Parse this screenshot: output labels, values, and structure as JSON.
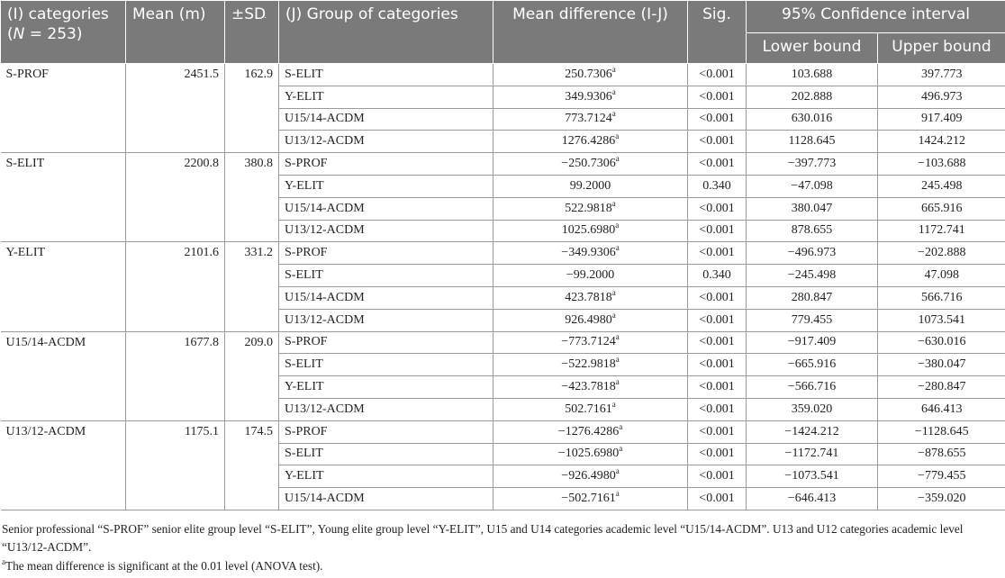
{
  "header": {
    "col_i": "(I) categories",
    "col_i_n_prefix": "(",
    "col_i_n": "N",
    "col_i_n_suffix": " = 253)",
    "col_mean": "Mean (m)",
    "col_sd": "±SD",
    "col_j": "(J) Group of categories",
    "col_diff": "Mean difference (I-J)",
    "col_sig": "Sig.",
    "col_ci": "95% Confidence interval",
    "col_lower": "Lower bound",
    "col_upper": "Upper bound"
  },
  "groups": [
    {
      "category": "S-PROF",
      "mean": "2451.5",
      "sd": "162.9",
      "rows": [
        {
          "j": "S-ELIT",
          "diff": "250.7306",
          "sup": "a",
          "sig": "<0.001",
          "lower": "103.688",
          "upper": "397.773"
        },
        {
          "j": "Y-ELIT",
          "diff": "349.9306",
          "sup": "a",
          "sig": "<0.001",
          "lower": "202.888",
          "upper": "496.973"
        },
        {
          "j": "U15/14-ACDM",
          "diff": "773.7124",
          "sup": "a",
          "sig": "<0.001",
          "lower": "630.016",
          "upper": "917.409"
        },
        {
          "j": "U13/12-ACDM",
          "diff": "1276.4286",
          "sup": "a",
          "sig": "<0.001",
          "lower": "1128.645",
          "upper": "1424.212"
        }
      ]
    },
    {
      "category": "S-ELIT",
      "mean": "2200.8",
      "sd": "380.8",
      "rows": [
        {
          "j": "S-PROF",
          "diff": "−250.7306",
          "sup": "a",
          "sig": "<0.001",
          "lower": "−397.773",
          "upper": "−103.688"
        },
        {
          "j": "Y-ELIT",
          "diff": "99.2000",
          "sup": "",
          "sig": "0.340",
          "lower": "−47.098",
          "upper": "245.498"
        },
        {
          "j": "U15/14-ACDM",
          "diff": "522.9818",
          "sup": "a",
          "sig": "<0.001",
          "lower": "380.047",
          "upper": "665.916"
        },
        {
          "j": "U13/12-ACDM",
          "diff": "1025.6980",
          "sup": "a",
          "sig": "<0.001",
          "lower": "878.655",
          "upper": "1172.741"
        }
      ]
    },
    {
      "category": "Y-ELIT",
      "mean": "2101.6",
      "sd": "331.2",
      "rows": [
        {
          "j": "S-PROF",
          "diff": "−349.9306",
          "sup": "a",
          "sig": "<0.001",
          "lower": "−496.973",
          "upper": "−202.888"
        },
        {
          "j": "S-ELIT",
          "diff": "−99.2000",
          "sup": "",
          "sig": "0.340",
          "lower": "−245.498",
          "upper": "47.098"
        },
        {
          "j": "U15/14-ACDM",
          "diff": "423.7818",
          "sup": "a",
          "sig": "<0.001",
          "lower": "280.847",
          "upper": "566.716"
        },
        {
          "j": "U13/12-ACDM",
          "diff": "926.4980",
          "sup": "a",
          "sig": "<0.001",
          "lower": "779.455",
          "upper": "1073.541"
        }
      ]
    },
    {
      "category": "U15/14-ACDM",
      "mean": "1677.8",
      "sd": "209.0",
      "rows": [
        {
          "j": "S-PROF",
          "diff": "−773.7124",
          "sup": "a",
          "sig": "<0.001",
          "lower": "−917.409",
          "upper": "−630.016"
        },
        {
          "j": "S-ELIT",
          "diff": "−522.9818",
          "sup": "a",
          "sig": "<0.001",
          "lower": "−665.916",
          "upper": "−380.047"
        },
        {
          "j": "Y-ELIT",
          "diff": "−423.7818",
          "sup": "a",
          "sig": "<0.001",
          "lower": "−566.716",
          "upper": "−280.847"
        },
        {
          "j": "U13/12-ACDM",
          "diff": "502.7161",
          "sup": "a",
          "sig": "<0.001",
          "lower": "359.020",
          "upper": "646.413"
        }
      ]
    },
    {
      "category": "U13/12-ACDM",
      "mean": "1175.1",
      "sd": "174.5",
      "rows": [
        {
          "j": "S-PROF",
          "diff": "−1276.4286",
          "sup": "a",
          "sig": "<0.001",
          "lower": "−1424.212",
          "upper": "−1128.645"
        },
        {
          "j": "S-ELIT",
          "diff": "−1025.6980",
          "sup": "a",
          "sig": "<0.001",
          "lower": "−1172.741",
          "upper": "−878.655"
        },
        {
          "j": "Y-ELIT",
          "diff": "−926.4980",
          "sup": "a",
          "sig": "<0.001",
          "lower": "−1073.541",
          "upper": "−779.455"
        },
        {
          "j": "U15/14-ACDM",
          "diff": "−502.7161",
          "sup": "a",
          "sig": "<0.001",
          "lower": "−646.413",
          "upper": "−359.020"
        }
      ]
    }
  ],
  "notes": {
    "abbreviations": "Senior professional “S-PROF” senior elite group level “S-ELIT”, Young elite group level “Y-ELIT”, U15 and U14 categories academic level “U15/14-ACDM”. U13 and U12 categories academic level “U13/12-ACDM”.",
    "footnote_marker": "a",
    "footnote_text": "The mean difference is significant at the 0.01 level (ANOVA test)."
  },
  "colors": {
    "header_bg": "#7a7a7a",
    "header_text": "#ffffff",
    "border": "#9a9a9a"
  }
}
